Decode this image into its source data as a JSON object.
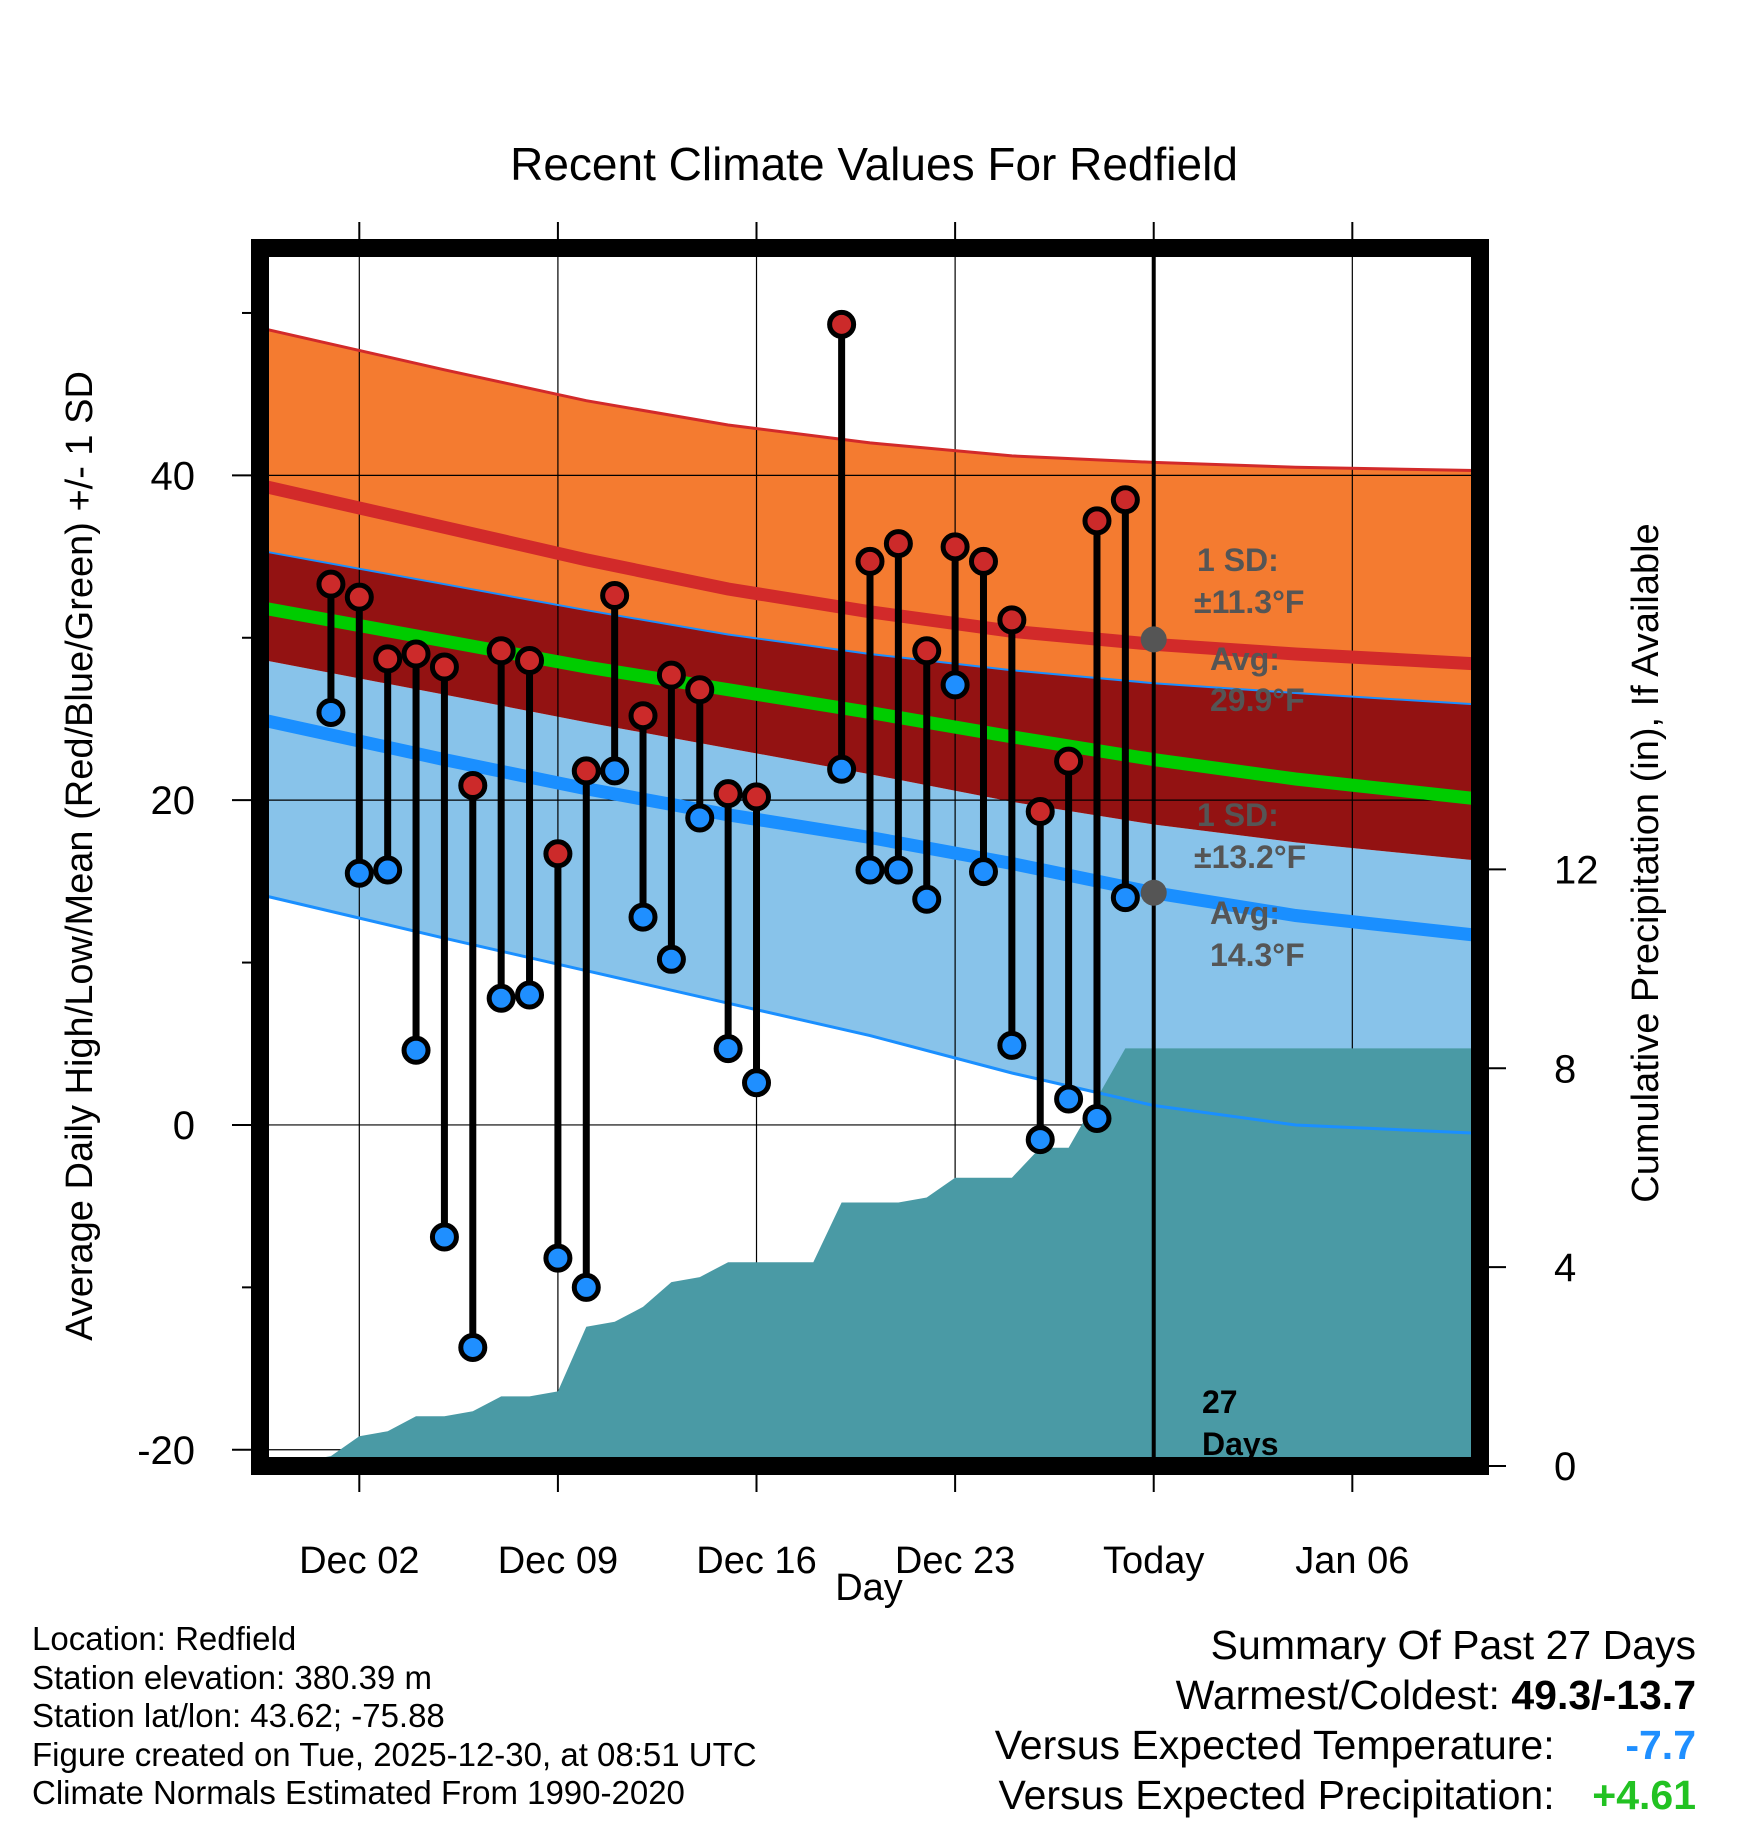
{
  "chart_data": {
    "type": "line",
    "title": "Recent Climate Values For Redfield",
    "xlabel": "Day",
    "ylabel_left": "Average Daily High/Low/Mean (Red/Blue/Green) +/- 1 SD",
    "ylabel_right": "Cumulative Precipitation (in), If Available",
    "x_range_days": [
      -1.5,
      41.5
    ],
    "ylim_left": [
      -21,
      54
    ],
    "ylim_right": [
      0,
      24.5
    ],
    "x_tick_positions": [
      2,
      9,
      16,
      23,
      30,
      37
    ],
    "x_tick_labels": [
      "Dec 02",
      "Dec 09",
      "Dec 16",
      "Dec 23",
      "Today",
      "Jan 06"
    ],
    "left_ticks": [
      -20,
      0,
      20,
      40
    ],
    "left_minor_ticks": [
      -10,
      10,
      30,
      50
    ],
    "right_ticks": [
      0,
      4,
      8,
      12
    ],
    "normals": {
      "x": [
        -1.3,
        5,
        10,
        15,
        20,
        25,
        30,
        35,
        41.3
      ],
      "high_mean": [
        39.3,
        36.8,
        34.8,
        33.0,
        31.6,
        30.4,
        29.6,
        29.0,
        28.4
      ],
      "high_upper": [
        49.0,
        46.5,
        44.6,
        43.1,
        42.0,
        41.2,
        40.8,
        40.5,
        40.3
      ],
      "high_lower": [
        35.3,
        33.3,
        31.7,
        30.2,
        29.0,
        28.0,
        27.2,
        26.6,
        25.9
      ],
      "mean": [
        31.8,
        29.8,
        28.2,
        26.8,
        25.4,
        23.9,
        22.5,
        21.3,
        20.1
      ],
      "low_mean": [
        24.9,
        22.5,
        20.7,
        19.1,
        17.7,
        16.1,
        14.3,
        12.9,
        11.7
      ],
      "low_upper": [
        28.6,
        26.5,
        24.8,
        23.2,
        21.6,
        19.9,
        18.5,
        17.4,
        16.3
      ],
      "low_lower": [
        14.1,
        11.5,
        9.5,
        7.5,
        5.5,
        3.2,
        1.2,
        0.0,
        -0.5
      ],
      "colors": {
        "high_band": "#f47b30",
        "high_line": "#d22a2a",
        "overlap_band": "#931212",
        "mean_line": "#00cc00",
        "low_band": "#88c3ea",
        "low_line": "#1a8fff",
        "precip": "#4a9aa5",
        "today_point": "#555555"
      }
    },
    "observations": {
      "day": [
        1,
        2,
        3,
        4,
        5,
        6,
        7,
        8,
        9,
        10,
        11,
        12,
        13,
        14,
        15,
        16,
        19,
        20,
        21,
        22,
        23,
        24,
        25,
        26,
        27,
        28,
        29
      ],
      "high": [
        33.3,
        32.5,
        28.7,
        29.0,
        28.2,
        20.9,
        29.2,
        28.6,
        16.7,
        21.8,
        32.6,
        25.2,
        27.7,
        26.8,
        20.4,
        20.2,
        49.3,
        34.7,
        35.8,
        29.2,
        35.6,
        34.7,
        31.1,
        19.3,
        22.4,
        37.2,
        38.5
      ],
      "low": [
        25.4,
        15.5,
        15.7,
        4.6,
        -6.9,
        -13.7,
        7.8,
        8.0,
        -8.2,
        -10.0,
        21.8,
        12.8,
        10.2,
        18.9,
        4.7,
        2.6,
        21.9,
        15.7,
        15.7,
        13.9,
        27.1,
        15.6,
        4.9,
        -0.9,
        1.6,
        0.4,
        14.0
      ]
    },
    "precipitation": {
      "day": [
        -1.3,
        0,
        1,
        2,
        3,
        4,
        5,
        6,
        7,
        8,
        9,
        10,
        11,
        12,
        13,
        14,
        15,
        16,
        17,
        18,
        19,
        20,
        21,
        22,
        23,
        24,
        25,
        26,
        27,
        28,
        29,
        30,
        41.3
      ],
      "cumulative": [
        0,
        0.1,
        0.2,
        0.6,
        0.7,
        1.0,
        1.0,
        1.1,
        1.4,
        1.4,
        1.5,
        2.8,
        2.9,
        3.2,
        3.7,
        3.8,
        4.1,
        4.1,
        4.1,
        4.1,
        5.3,
        5.3,
        5.3,
        5.4,
        5.8,
        5.8,
        5.8,
        6.4,
        6.4,
        7.4,
        8.4,
        8.4,
        8.4
      ]
    },
    "annotations": {
      "high_sd_line1": "1 SD:",
      "high_sd_line2": "±11.3°F",
      "high_avg_line1": "Avg:",
      "high_avg_line2": "29.9°F",
      "low_sd_line1": "1 SD:",
      "low_sd_line2": "±13.2°F",
      "low_avg_line1": "Avg:",
      "low_avg_line2": "14.3°F",
      "days_line1": "27",
      "days_line2": "Days",
      "today_high_avg": 29.9,
      "today_low_avg": 14.3
    }
  },
  "info": {
    "location": "Location: Redfield",
    "elevation": "Station elevation: 380.39 m",
    "latlon": "Station lat/lon: 43.62; -75.88",
    "created": "Figure created on Tue, 2025-12-30, at 08:51 UTC",
    "normals": "Climate Normals Estimated From 1990-2020"
  },
  "summary": {
    "title": "Summary Of Past 27 Days",
    "warm_cold_label": "Warmest/Coldest:",
    "warm_cold_value": "49.3/-13.7",
    "temp_label": "Versus Expected Temperature:",
    "temp_value": "-7.7",
    "precip_label": "Versus Expected Precipitation:",
    "precip_value": "+4.61"
  }
}
